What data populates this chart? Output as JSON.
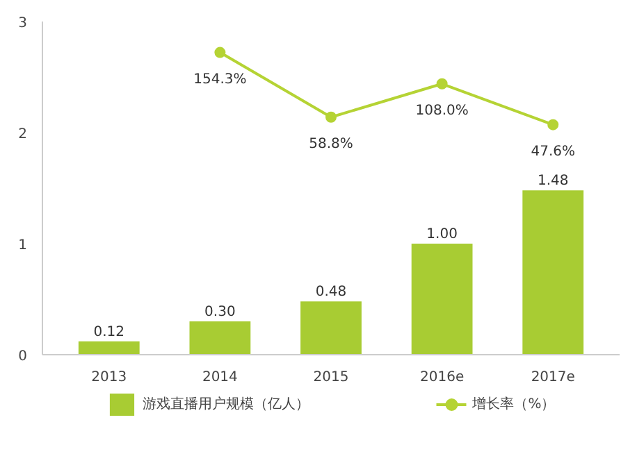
{
  "chart_data": {
    "type": "bar",
    "categories": [
      "2013",
      "2014",
      "2015",
      "2016e",
      "2017e"
    ],
    "series": [
      {
        "name": "游戏直播用户规模（亿人）",
        "color": "#a8cc33",
        "values": [
          0.12,
          0.3,
          0.48,
          1.0,
          1.48
        ],
        "value_labels": [
          "0.12",
          "0.30",
          "0.48",
          "1.00",
          "1.48"
        ]
      },
      {
        "name": "增长率（%）",
        "type": "line",
        "axis": "y2",
        "color": "#b5d334",
        "marker": "circle",
        "values": [
          null,
          154.3,
          58.8,
          108.0,
          47.6
        ],
        "value_labels": [
          null,
          "154.3%",
          "58.8%",
          "108.0%",
          "47.6%"
        ]
      }
    ],
    "ylim": [
      0,
      3
    ],
    "yticks": [
      0,
      1,
      2,
      3
    ],
    "y2lim": [
      -292,
      200
    ],
    "legend": "bottom",
    "grid": false
  }
}
